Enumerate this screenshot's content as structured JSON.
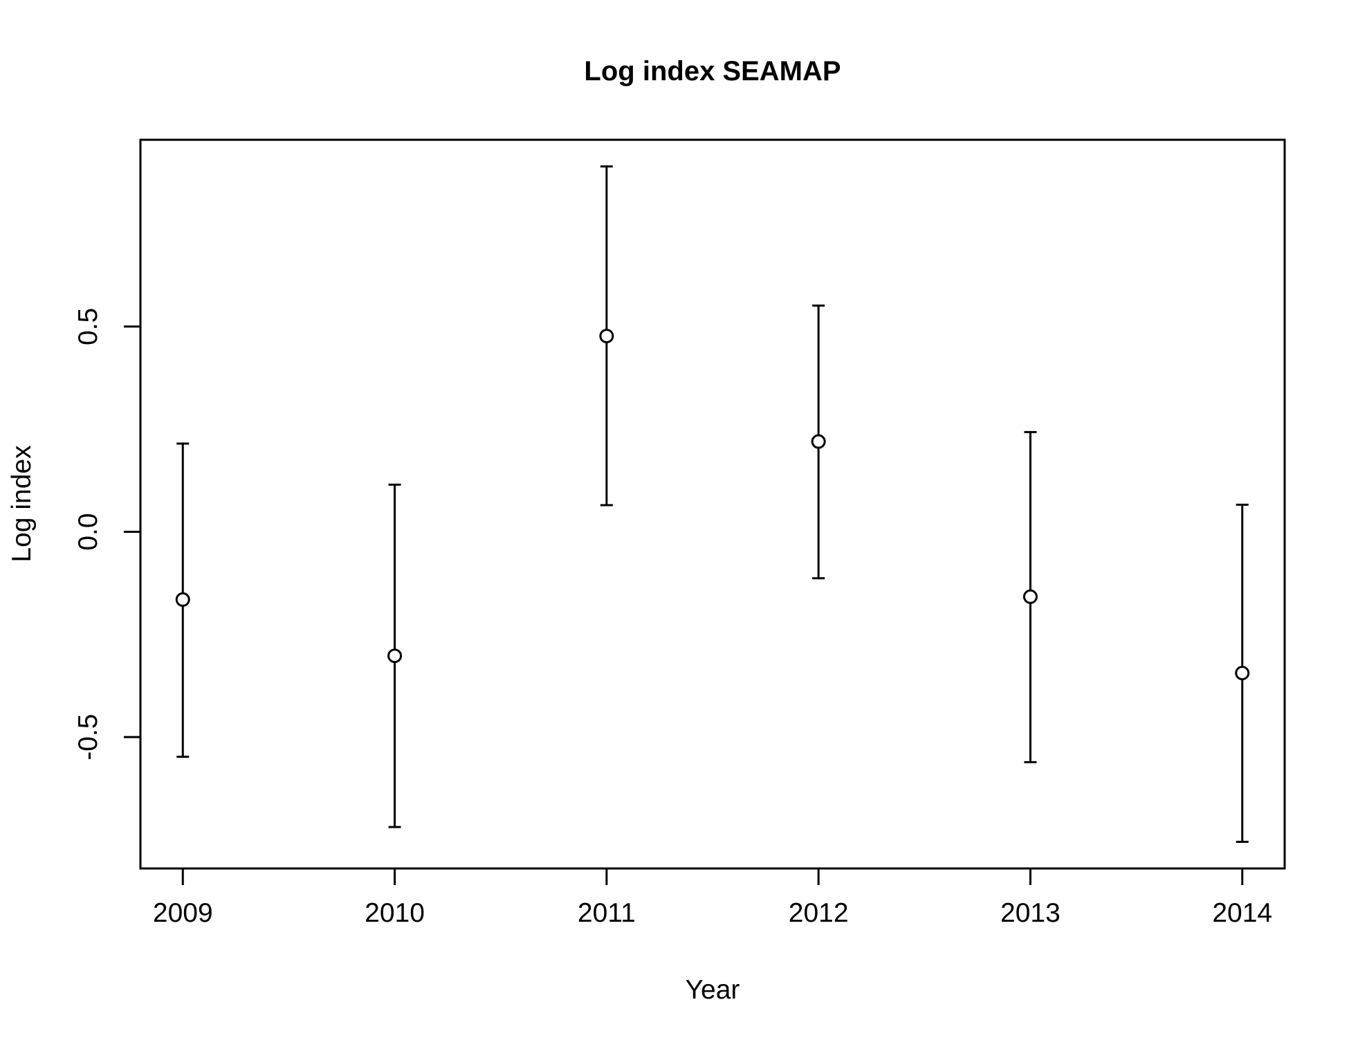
{
  "chart_data": {
    "type": "scatter",
    "title": "Log index SEAMAP",
    "xlabel": "Year",
    "ylabel": "Log index",
    "x": [
      2009,
      2010,
      2011,
      2012,
      2013,
      2014
    ],
    "x_tick_labels": [
      "2009",
      "2010",
      "2011",
      "2012",
      "2013",
      "2014"
    ],
    "y_tick_labels": [
      "-0.5",
      "0.0",
      "0.5"
    ],
    "y_ticks": [
      -0.5,
      0.0,
      0.5
    ],
    "series": [
      {
        "values": [
          -0.165,
          -0.302,
          0.477,
          0.22,
          -0.158,
          -0.344
        ],
        "lower": [
          -0.548,
          -0.719,
          0.065,
          -0.113,
          -0.561,
          -0.755
        ],
        "upper": [
          0.215,
          0.115,
          0.89,
          0.551,
          0.243,
          0.066
        ]
      }
    ],
    "xlim": [
      2008.8,
      2014.2
    ],
    "ylim": [
      -0.82,
      0.955
    ],
    "grid": false,
    "marker": "open-circle",
    "error_bars": true
  }
}
